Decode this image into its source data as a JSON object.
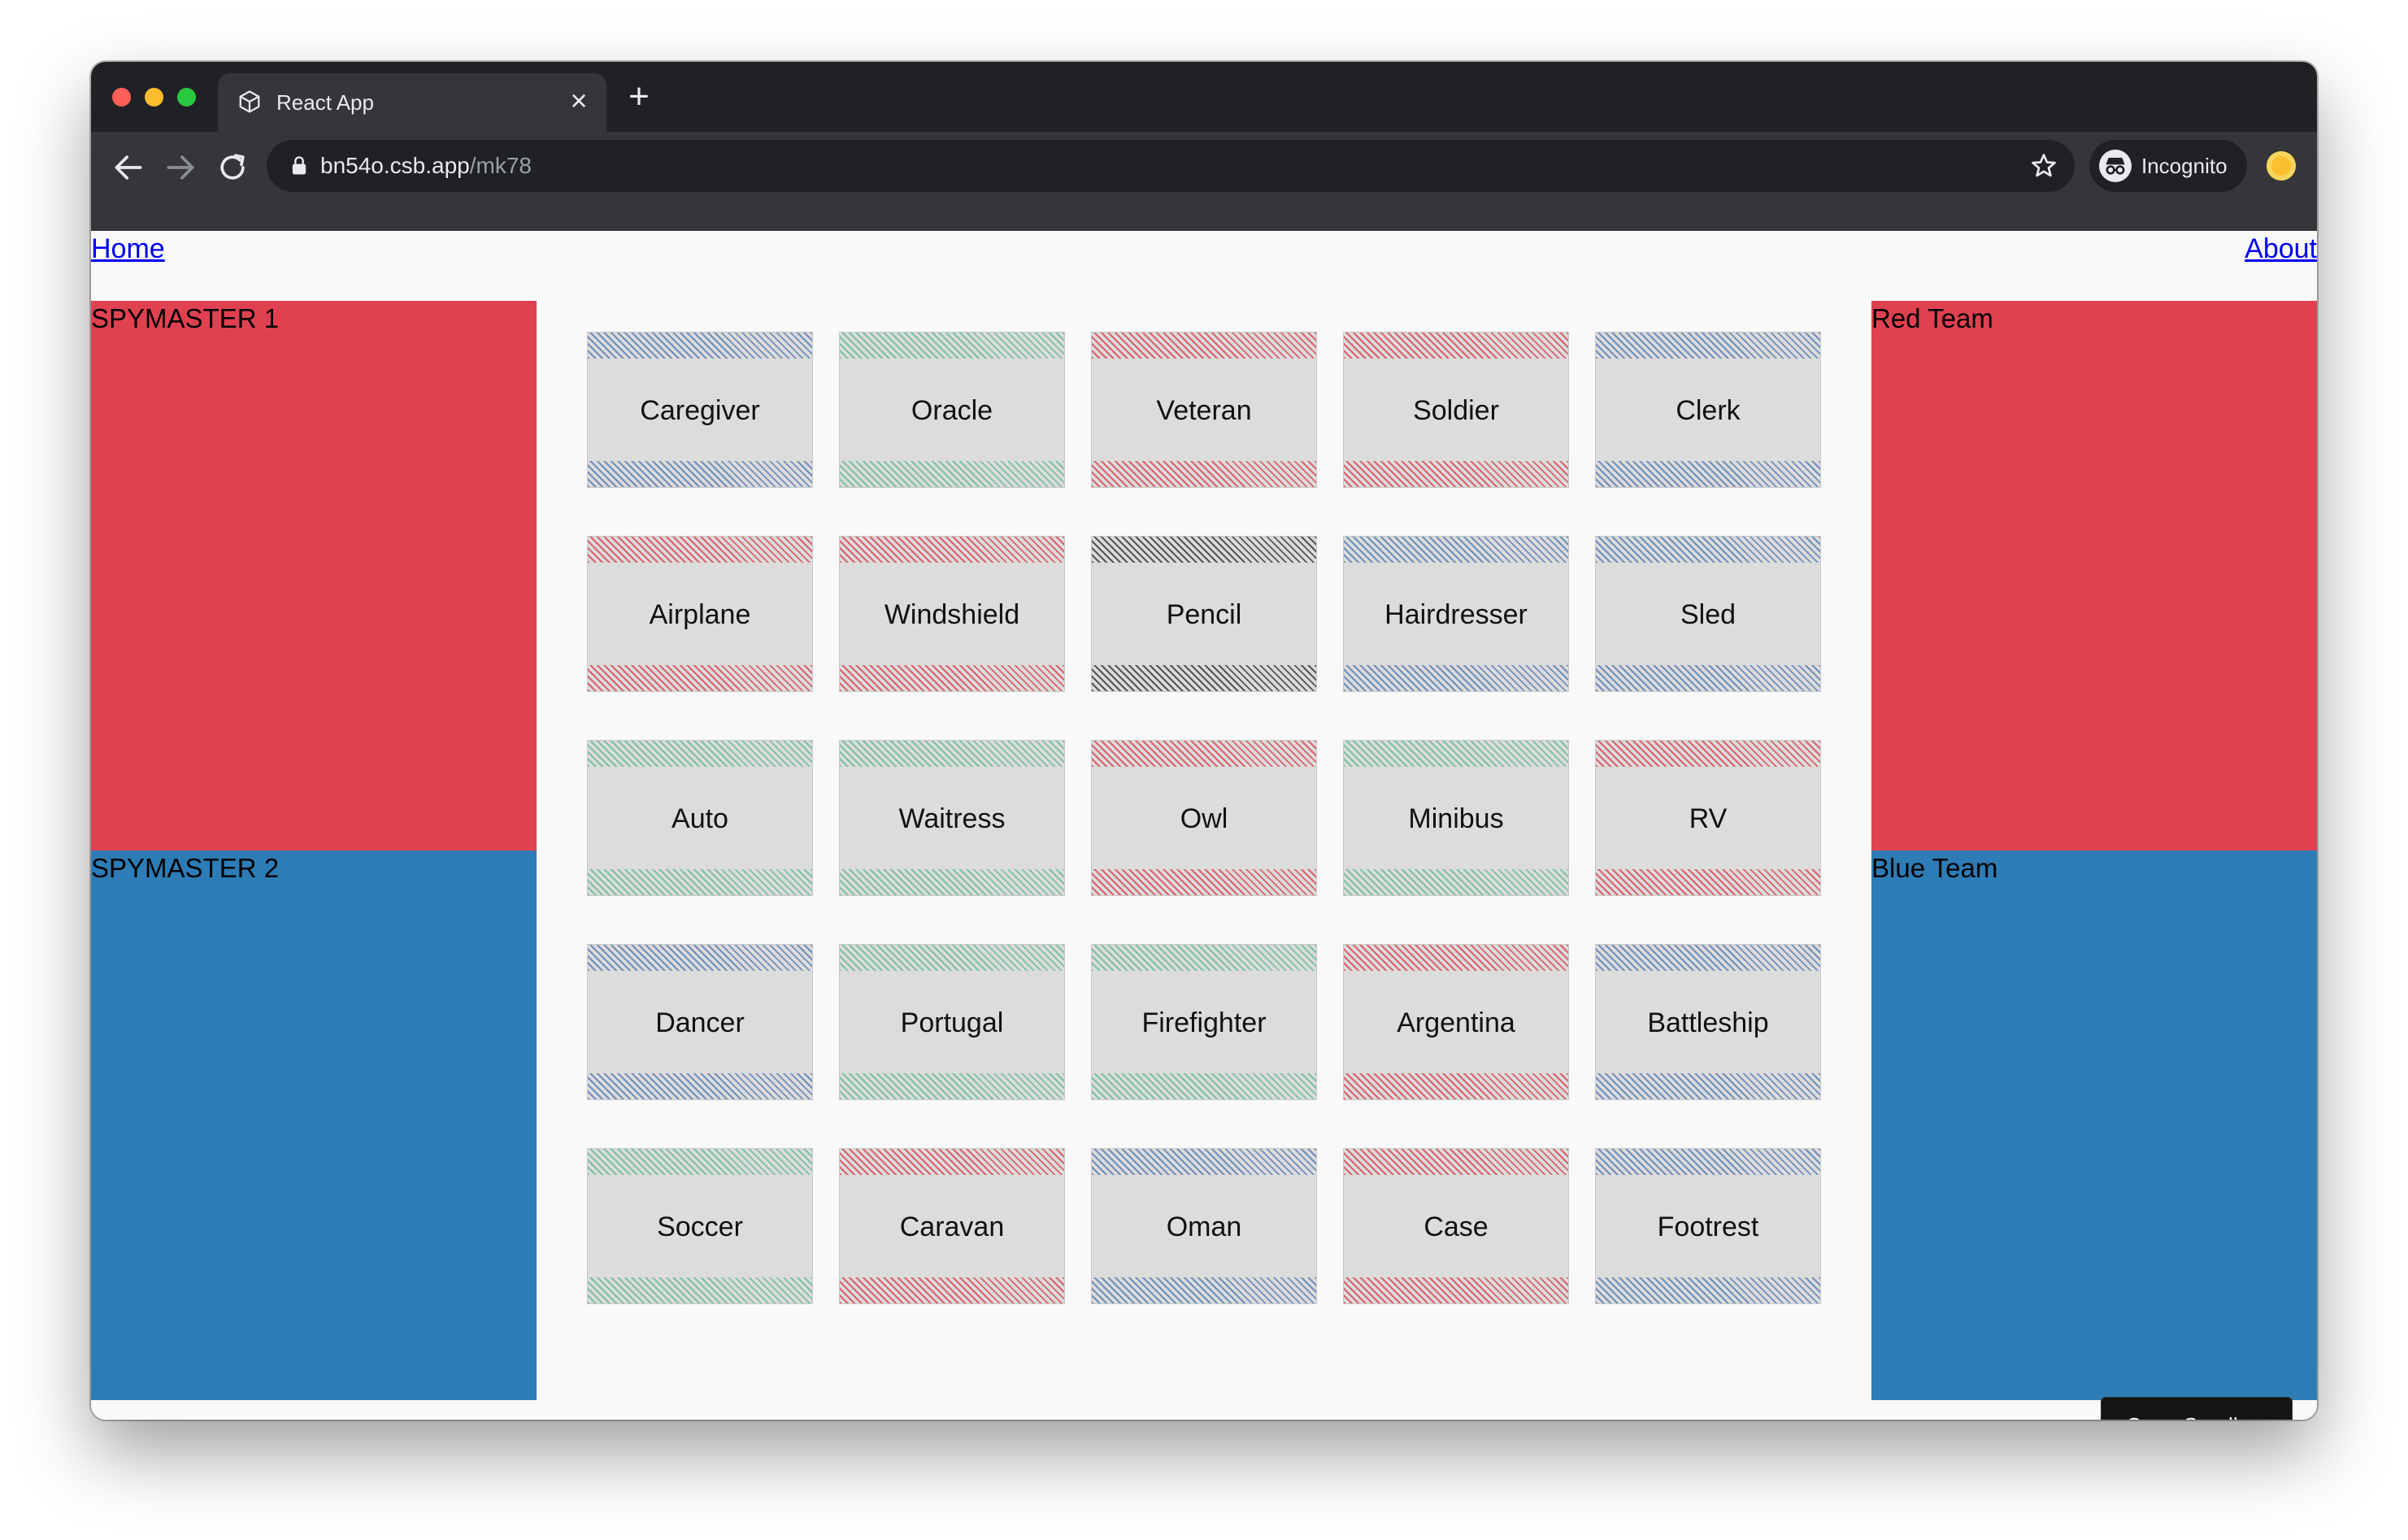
{
  "browser": {
    "tab_title": "React App",
    "url_host": "bn54o.csb.app",
    "url_path": "/mk78",
    "profile_label": "Incognito"
  },
  "nav": {
    "home": "Home",
    "about": "About"
  },
  "panels": {
    "spymaster1": "SPYMASTER 1",
    "spymaster2": "SPYMASTER 2",
    "red_team": "Red Team",
    "blue_team": "Blue Team"
  },
  "colors": {
    "red_team": "#e04150",
    "blue_team": "#2e7cb5",
    "stripe_blue": "#6f8fb8",
    "stripe_red": "#d9626c",
    "stripe_green": "#7cc0a0",
    "stripe_black": "#555555"
  },
  "board": {
    "cards": [
      {
        "word": "Caregiver",
        "team": "blue"
      },
      {
        "word": "Oracle",
        "team": "green"
      },
      {
        "word": "Veteran",
        "team": "red"
      },
      {
        "word": "Soldier",
        "team": "red"
      },
      {
        "word": "Clerk",
        "team": "blue"
      },
      {
        "word": "Airplane",
        "team": "red"
      },
      {
        "word": "Windshield",
        "team": "red"
      },
      {
        "word": "Pencil",
        "team": "black"
      },
      {
        "word": "Hairdresser",
        "team": "blue"
      },
      {
        "word": "Sled",
        "team": "blue"
      },
      {
        "word": "Auto",
        "team": "green"
      },
      {
        "word": "Waitress",
        "team": "green"
      },
      {
        "word": "Owl",
        "team": "red"
      },
      {
        "word": "Minibus",
        "team": "green"
      },
      {
        "word": "RV",
        "team": "red"
      },
      {
        "word": "Dancer",
        "team": "blue"
      },
      {
        "word": "Portugal",
        "team": "green"
      },
      {
        "word": "Firefighter",
        "team": "green"
      },
      {
        "word": "Argentina",
        "team": "red"
      },
      {
        "word": "Battleship",
        "team": "blue"
      },
      {
        "word": "Soccer",
        "team": "green"
      },
      {
        "word": "Caravan",
        "team": "red"
      },
      {
        "word": "Oman",
        "team": "blue"
      },
      {
        "word": "Case",
        "team": "red"
      },
      {
        "word": "Footrest",
        "team": "blue"
      }
    ]
  },
  "open_sandbox_label": "Open Sandbox"
}
